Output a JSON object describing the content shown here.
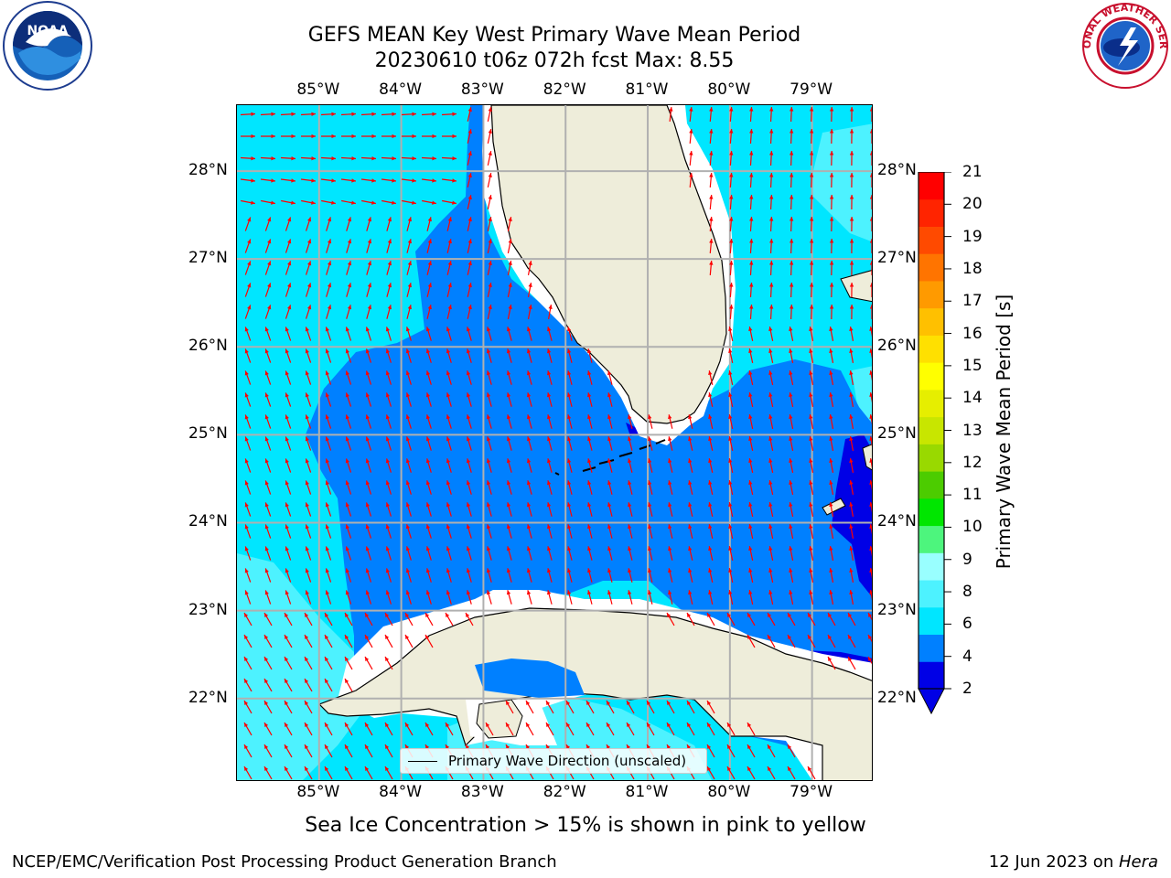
{
  "title_line1": "GEFS MEAN Key West Primary Wave Mean Period",
  "title_line2": "20230610 t06z 072h fcst   Max: 8.55",
  "logos": {
    "left_icon": "noaa-logo",
    "right_icon": "national-weather-service-logo",
    "left_text": "NOAA",
    "right_text": "NATIONAL WEATHER SERVICE"
  },
  "legend": {
    "label": "Primary Wave Direction (unscaled)"
  },
  "colorbar": {
    "label": "Primary Wave Mean Period [s]",
    "ticks": [
      "2",
      "4",
      "6",
      "8",
      "9",
      "10",
      "11",
      "12",
      "13",
      "14",
      "15",
      "16",
      "17",
      "18",
      "19",
      "20",
      "21"
    ],
    "colors": [
      "#0000e6",
      "#0080ff",
      "#00e6ff",
      "#4df2ff",
      "#99ffff",
      "#4df57d",
      "#00e600",
      "#4ccc00",
      "#99d900",
      "#c8e600",
      "#e6ee00",
      "#ffff00",
      "#ffe000",
      "#ffc000",
      "#ff9a00",
      "#ff7400",
      "#ff4a00",
      "#ff2400",
      "#ff0000"
    ]
  },
  "sea_ice_note": "Sea Ice Concentration > 15% is shown in pink to yellow",
  "footer_left": "NCEP/EMC/Verification Post Processing Product Generation Branch",
  "footer_right_prefix": "12 Jun 2023 on ",
  "footer_right_host": "Hera",
  "map": {
    "lon_range": [
      -86.0,
      -78.25
    ],
    "lat_range": [
      21.05,
      28.75
    ],
    "lon_ticks": [
      "85°W",
      "84°W",
      "83°W",
      "82°W",
      "81°W",
      "80°W",
      "79°W"
    ],
    "lat_ticks": [
      "28°N",
      "27°N",
      "26°N",
      "25°N",
      "24°N",
      "23°N",
      "22°N"
    ],
    "colors": {
      "land": "#eeedda",
      "deep_blue": "#0000e6",
      "mid_blue": "#0080ff",
      "cyan": "#00e6ff",
      "light_cyan": "#4df2ff",
      "paler": "#99ffff",
      "arrow": "#ff0000"
    }
  }
}
